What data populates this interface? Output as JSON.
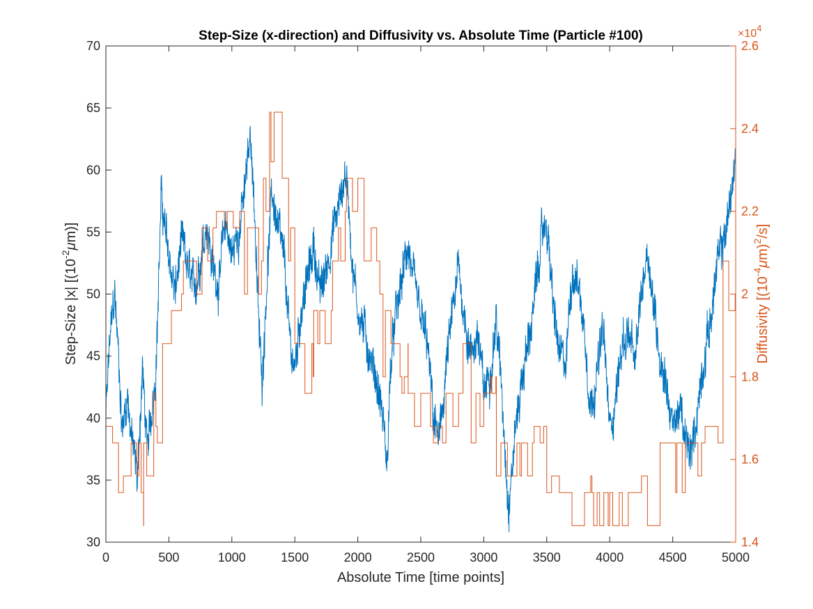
{
  "chart_data": {
    "type": "line",
    "title": "Step-Size (x-direction) and Diffusivity vs. Absolute Time (Particle #100)",
    "xlabel": "Absolute Time [time points]",
    "xlim": [
      0,
      5000
    ],
    "xticks": [
      0,
      500,
      1000,
      1500,
      2000,
      2500,
      3000,
      3500,
      4000,
      4500,
      5000
    ],
    "y_left": {
      "label": "Step-Size |x| [(10^-2 μm)]",
      "label_parts": [
        "Step-Size |x| [(10",
        "-2",
        "μ",
        "m)]"
      ],
      "lim": [
        30,
        70
      ],
      "ticks": [
        30,
        35,
        40,
        45,
        50,
        55,
        60,
        65,
        70
      ],
      "color": "#0072BD"
    },
    "y_right": {
      "label": "Diffusivity [(10^-4 μm)^2/s]",
      "label_parts": [
        "Diffusivity [(10",
        "-4",
        "μ",
        "m)",
        "2",
        "/s]"
      ],
      "lim": [
        1.4,
        2.6
      ],
      "ticks": [
        "1.4",
        "1.6",
        "1.8",
        "2",
        "2.2",
        "2.4",
        "2.6"
      ],
      "exponent_parts": [
        "×10",
        "4"
      ],
      "color": "#D95319"
    },
    "grid": false,
    "series": [
      {
        "axis": "left",
        "color": "#0072BD",
        "anchors": [
          [
            0,
            40
          ],
          [
            30,
            46
          ],
          [
            70,
            50
          ],
          [
            100,
            45
          ],
          [
            130,
            39
          ],
          [
            170,
            42
          ],
          [
            210,
            38
          ],
          [
            250,
            35
          ],
          [
            290,
            44
          ],
          [
            330,
            37
          ],
          [
            360,
            40
          ],
          [
            400,
            45
          ],
          [
            440,
            58
          ],
          [
            470,
            55
          ],
          [
            500,
            53
          ],
          [
            550,
            50
          ],
          [
            600,
            54
          ],
          [
            650,
            52
          ],
          [
            700,
            50
          ],
          [
            750,
            53
          ],
          [
            800,
            56
          ],
          [
            850,
            52
          ],
          [
            900,
            51
          ],
          [
            950,
            56
          ],
          [
            1000,
            53
          ],
          [
            1050,
            55
          ],
          [
            1100,
            58
          ],
          [
            1150,
            63
          ],
          [
            1180,
            57
          ],
          [
            1210,
            48
          ],
          [
            1240,
            43
          ],
          [
            1280,
            52
          ],
          [
            1320,
            58
          ],
          [
            1370,
            55
          ],
          [
            1420,
            52
          ],
          [
            1460,
            46
          ],
          [
            1500,
            44
          ],
          [
            1550,
            49
          ],
          [
            1600,
            51
          ],
          [
            1650,
            54
          ],
          [
            1700,
            50
          ],
          [
            1750,
            52
          ],
          [
            1800,
            55
          ],
          [
            1850,
            57
          ],
          [
            1900,
            60
          ],
          [
            1930,
            57
          ],
          [
            1960,
            52
          ],
          [
            2000,
            49
          ],
          [
            2050,
            47
          ],
          [
            2100,
            45
          ],
          [
            2150,
            43
          ],
          [
            2200,
            40
          ],
          [
            2230,
            36
          ],
          [
            2260,
            44
          ],
          [
            2300,
            48
          ],
          [
            2350,
            51
          ],
          [
            2400,
            54
          ],
          [
            2450,
            50
          ],
          [
            2500,
            48
          ],
          [
            2550,
            46
          ],
          [
            2600,
            40
          ],
          [
            2650,
            38
          ],
          [
            2700,
            44
          ],
          [
            2750,
            48
          ],
          [
            2800,
            52
          ],
          [
            2850,
            48
          ],
          [
            2900,
            45
          ],
          [
            2950,
            47
          ],
          [
            3000,
            42
          ],
          [
            3050,
            44
          ],
          [
            3100,
            48
          ],
          [
            3150,
            41
          ],
          [
            3200,
            33
          ],
          [
            3250,
            39
          ],
          [
            3300,
            43
          ],
          [
            3350,
            46
          ],
          [
            3400,
            49
          ],
          [
            3450,
            54
          ],
          [
            3500,
            56
          ],
          [
            3550,
            49
          ],
          [
            3600,
            45
          ],
          [
            3650,
            44
          ],
          [
            3700,
            52
          ],
          [
            3750,
            51
          ],
          [
            3800,
            47
          ],
          [
            3850,
            41
          ],
          [
            3900,
            44
          ],
          [
            3950,
            47
          ],
          [
            4000,
            39
          ],
          [
            4050,
            42
          ],
          [
            4100,
            46
          ],
          [
            4150,
            47
          ],
          [
            4200,
            44
          ],
          [
            4250,
            50
          ],
          [
            4300,
            54
          ],
          [
            4350,
            49
          ],
          [
            4400,
            45
          ],
          [
            4450,
            43
          ],
          [
            4500,
            39
          ],
          [
            4550,
            41
          ],
          [
            4600,
            38
          ],
          [
            4650,
            37
          ],
          [
            4700,
            41
          ],
          [
            4750,
            45
          ],
          [
            4800,
            48
          ],
          [
            4850,
            52
          ],
          [
            4900,
            54
          ],
          [
            4950,
            57
          ],
          [
            5000,
            61
          ]
        ],
        "noise_amplitude": 2.6
      },
      {
        "axis": "right",
        "color": "#D95319",
        "step_levels_x1e4": [
          1.44,
          1.52,
          1.56,
          1.64,
          1.68,
          1.76,
          1.8,
          1.88,
          1.96,
          2.0,
          2.08,
          2.16,
          2.2,
          2.28,
          2.32,
          2.44
        ],
        "segments": [
          [
            0,
            1.6
          ],
          [
            100,
            1.56
          ],
          [
            200,
            1.64
          ],
          [
            280,
            1.44
          ],
          [
            300,
            1.56
          ],
          [
            380,
            1.68
          ],
          [
            450,
            1.88
          ],
          [
            520,
            1.96
          ],
          [
            600,
            2.04
          ],
          [
            700,
            2.08
          ],
          [
            850,
            2.2
          ],
          [
            1100,
            2.08
          ],
          [
            1180,
            2.12
          ],
          [
            1250,
            2.24
          ],
          [
            1300,
            2.44
          ],
          [
            1400,
            2.28
          ],
          [
            1450,
            2.12
          ],
          [
            1500,
            1.92
          ],
          [
            1580,
            1.8
          ],
          [
            1650,
            1.96
          ],
          [
            1800,
            2.12
          ],
          [
            1900,
            2.28
          ],
          [
            2000,
            2.24
          ],
          [
            2050,
            2.12
          ],
          [
            2150,
            2.04
          ],
          [
            2200,
            1.92
          ],
          [
            2300,
            1.8
          ],
          [
            2400,
            1.72
          ],
          [
            2500,
            1.76
          ],
          [
            2600,
            1.6
          ],
          [
            2700,
            1.72
          ],
          [
            2800,
            1.8
          ],
          [
            2900,
            1.68
          ],
          [
            3000,
            1.76
          ],
          [
            3100,
            1.64
          ],
          [
            3200,
            1.56
          ],
          [
            3300,
            1.64
          ],
          [
            3400,
            1.72
          ],
          [
            3500,
            1.56
          ],
          [
            3600,
            1.52
          ],
          [
            3700,
            1.44
          ],
          [
            3800,
            1.52
          ],
          [
            3900,
            1.48
          ],
          [
            4000,
            1.52
          ],
          [
            4100,
            1.48
          ],
          [
            4200,
            1.56
          ],
          [
            4300,
            1.48
          ],
          [
            4400,
            1.56
          ],
          [
            4600,
            1.64
          ],
          [
            4700,
            1.6
          ],
          [
            4800,
            1.68
          ],
          [
            4900,
            2.04
          ],
          [
            5000,
            1.92
          ]
        ]
      }
    ]
  }
}
